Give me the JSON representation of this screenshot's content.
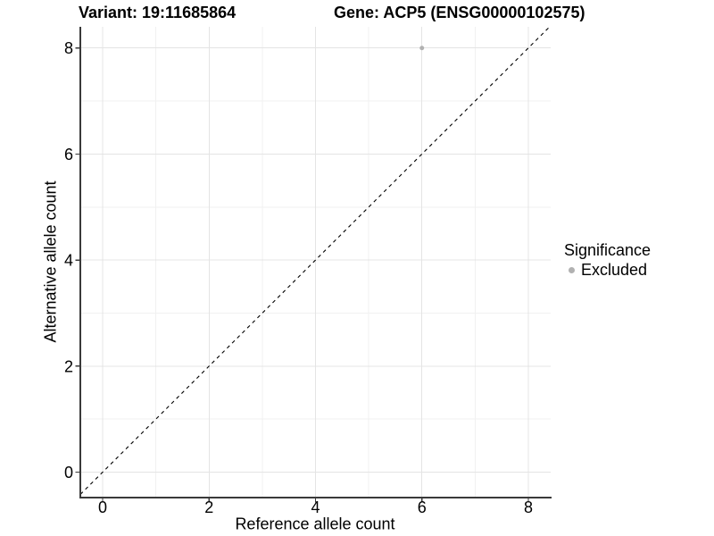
{
  "chart_data": {
    "type": "scatter",
    "titles": {
      "variant": "Variant: 19:11685864",
      "gene": "Gene: ACP5 (ENSG00000102575)"
    },
    "xlabel": "Reference allele count",
    "ylabel": "Alternative allele count",
    "xlim": [
      -0.42,
      8.42
    ],
    "ylim": [
      -0.48,
      8.4
    ],
    "x_major_ticks": [
      0,
      2,
      4,
      6,
      8
    ],
    "y_major_ticks": [
      0,
      2,
      4,
      6,
      8
    ],
    "x_minor_ticks": [
      1,
      3,
      5,
      7
    ],
    "y_minor_ticks": [
      1,
      3,
      5,
      7
    ],
    "grid": "major and minor gridlines, white background",
    "identity_line": {
      "style": "dashed",
      "color": "#000000",
      "from": [
        -0.42,
        -0.42
      ],
      "to": [
        8.4,
        8.4
      ]
    },
    "points": [
      {
        "x": 6,
        "y": 8,
        "series": "Excluded",
        "color": "#b1b1b1",
        "radius": 2.5
      }
    ],
    "legend": {
      "title": "Significance",
      "position": "right",
      "entries": [
        {
          "label": "Excluded",
          "marker": "circle",
          "color": "#b1b1b1"
        }
      ]
    }
  },
  "colors": {
    "background": "#ffffff",
    "grid_major": "#e4e4e4",
    "grid_minor": "#f1f1f1",
    "axis": "#3a3a3a",
    "text": "#000000",
    "point": "#b1b1b1"
  }
}
